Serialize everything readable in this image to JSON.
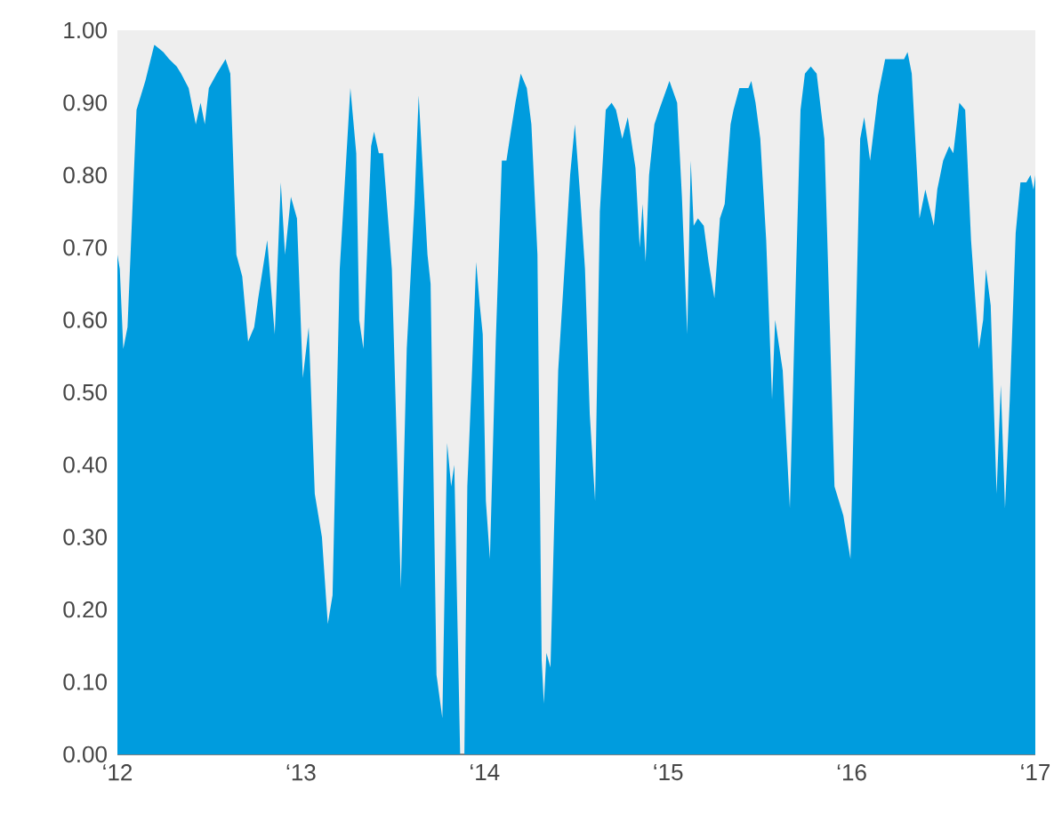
{
  "chart_data": {
    "type": "area",
    "color": "#009cde",
    "x": [
      12.0,
      12.013,
      12.032,
      12.055,
      12.104,
      12.152,
      12.201,
      12.25,
      12.282,
      12.323,
      12.347,
      12.388,
      12.427,
      12.453,
      12.476,
      12.498,
      12.541,
      12.589,
      12.615,
      12.648,
      12.68,
      12.712,
      12.745,
      12.767,
      12.816,
      12.857,
      12.89,
      12.913,
      12.945,
      12.978,
      13.01,
      13.042,
      13.075,
      13.114,
      13.146,
      13.172,
      13.211,
      13.269,
      13.301,
      13.317,
      13.34,
      13.382,
      13.398,
      13.424,
      13.447,
      13.495,
      13.544,
      13.576,
      13.618,
      13.641,
      13.689,
      13.706,
      13.738,
      13.77,
      13.796,
      13.818,
      13.835,
      13.867,
      13.89,
      13.906,
      13.932,
      13.954,
      13.974,
      13.99,
      14.007,
      14.029,
      14.061,
      14.094,
      14.119,
      14.143,
      14.168,
      14.197,
      14.23,
      14.255,
      14.288,
      14.311,
      14.323,
      14.337,
      14.359,
      14.401,
      14.44,
      14.466,
      14.492,
      14.521,
      14.547,
      14.573,
      14.602,
      14.628,
      14.66,
      14.692,
      14.716,
      14.75,
      14.78,
      14.822,
      14.845,
      14.861,
      14.877,
      14.896,
      14.925,
      14.951,
      15.007,
      15.049,
      15.075,
      15.104,
      15.123,
      15.139,
      15.162,
      15.194,
      15.22,
      15.252,
      15.282,
      15.308,
      15.34,
      15.356,
      15.388,
      15.437,
      15.453,
      15.476,
      15.502,
      15.534,
      15.566,
      15.583,
      15.624,
      15.663,
      15.696,
      15.721,
      15.745,
      15.777,
      15.809,
      15.851,
      15.906,
      15.954,
      15.993,
      16.046,
      16.068,
      16.1,
      16.143,
      16.182,
      16.23,
      16.262,
      16.285,
      16.304,
      16.327,
      16.369,
      16.401,
      16.447,
      16.466,
      16.498,
      16.531,
      16.553,
      16.586,
      16.618,
      16.65,
      16.692,
      16.716,
      16.731,
      16.757,
      16.789,
      16.812,
      16.835,
      16.861,
      16.893,
      16.919,
      16.951,
      16.974,
      16.99,
      17.0
    ],
    "values": [
      0.69,
      0.67,
      0.56,
      0.59,
      0.89,
      0.93,
      0.98,
      0.97,
      0.96,
      0.95,
      0.94,
      0.92,
      0.87,
      0.9,
      0.87,
      0.92,
      0.94,
      0.96,
      0.94,
      0.69,
      0.66,
      0.57,
      0.59,
      0.63,
      0.71,
      0.58,
      0.79,
      0.69,
      0.77,
      0.74,
      0.52,
      0.59,
      0.36,
      0.3,
      0.18,
      0.22,
      0.67,
      0.92,
      0.83,
      0.6,
      0.56,
      0.84,
      0.86,
      0.83,
      0.83,
      0.67,
      0.23,
      0.56,
      0.76,
      0.91,
      0.69,
      0.65,
      0.11,
      0.05,
      0.43,
      0.37,
      0.4,
      0.0,
      0.0,
      0.37,
      0.53,
      0.68,
      0.62,
      0.58,
      0.35,
      0.27,
      0.57,
      0.82,
      0.82,
      0.86,
      0.9,
      0.94,
      0.92,
      0.87,
      0.69,
      0.13,
      0.07,
      0.14,
      0.12,
      0.53,
      0.69,
      0.8,
      0.87,
      0.77,
      0.67,
      0.47,
      0.35,
      0.75,
      0.89,
      0.9,
      0.89,
      0.85,
      0.88,
      0.81,
      0.7,
      0.76,
      0.68,
      0.8,
      0.87,
      0.89,
      0.93,
      0.9,
      0.77,
      0.58,
      0.82,
      0.73,
      0.74,
      0.73,
      0.68,
      0.63,
      0.74,
      0.76,
      0.87,
      0.89,
      0.92,
      0.92,
      0.93,
      0.9,
      0.85,
      0.71,
      0.49,
      0.6,
      0.53,
      0.34,
      0.66,
      0.89,
      0.94,
      0.95,
      0.94,
      0.85,
      0.37,
      0.33,
      0.27,
      0.85,
      0.88,
      0.82,
      0.91,
      0.96,
      0.96,
      0.96,
      0.96,
      0.97,
      0.94,
      0.74,
      0.78,
      0.73,
      0.78,
      0.82,
      0.84,
      0.83,
      0.9,
      0.89,
      0.71,
      0.56,
      0.6,
      0.67,
      0.62,
      0.36,
      0.51,
      0.34,
      0.49,
      0.72,
      0.79,
      0.79,
      0.8,
      0.78,
      0.8
    ],
    "xlim": [
      12,
      17
    ],
    "xticks": [
      {
        "value": 12,
        "label": "‘12"
      },
      {
        "value": 13,
        "label": "‘13"
      },
      {
        "value": 14,
        "label": "‘14"
      },
      {
        "value": 15,
        "label": "‘15"
      },
      {
        "value": 16,
        "label": "‘16"
      },
      {
        "value": 17,
        "label": "‘17"
      }
    ],
    "ylim": [
      0,
      1
    ],
    "yticks": [
      {
        "value": 0,
        "label": "0.00"
      },
      {
        "value": 0.1,
        "label": "0.10"
      },
      {
        "value": 0.2,
        "label": "0.20"
      },
      {
        "value": 0.3,
        "label": "0.30"
      },
      {
        "value": 0.4,
        "label": "0.40"
      },
      {
        "value": 0.5,
        "label": "0.50"
      },
      {
        "value": 0.6,
        "label": "0.60"
      },
      {
        "value": 0.7,
        "label": "0.70"
      },
      {
        "value": 0.8,
        "label": "0.80"
      },
      {
        "value": 0.9,
        "label": "0.90"
      },
      {
        "value": 1,
        "label": "1.00"
      }
    ],
    "grid": false
  }
}
